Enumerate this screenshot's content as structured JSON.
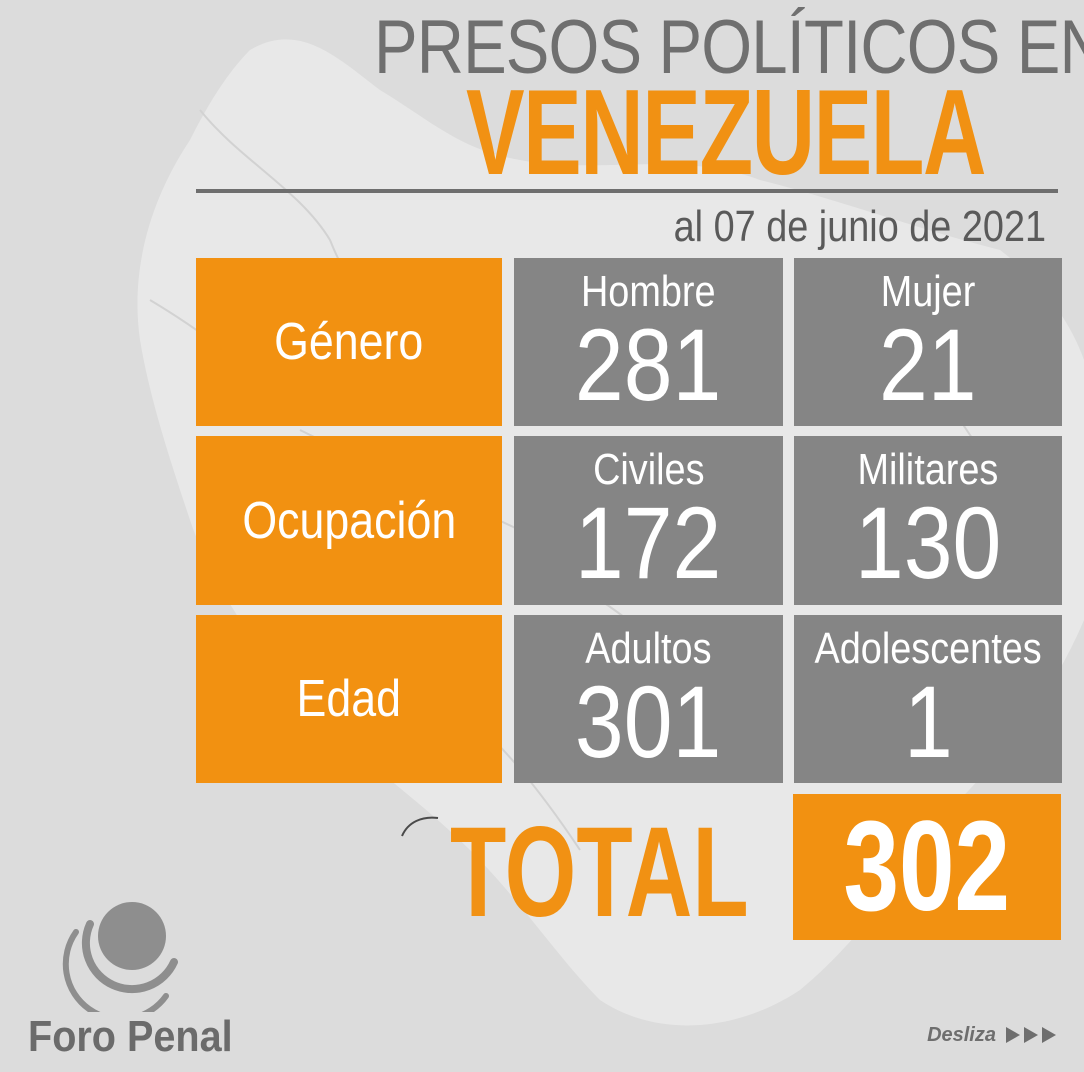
{
  "title": {
    "line1": "PRESOS POLÍTICOS EN",
    "line2": "VENEZUELA",
    "date": "al 07 de junio de 2021"
  },
  "rows": [
    {
      "category": "Género",
      "stats": [
        {
          "label": "Hombre",
          "value": "281"
        },
        {
          "label": "Mujer",
          "value": "21"
        }
      ]
    },
    {
      "category": "Ocupación",
      "stats": [
        {
          "label": "Civiles",
          "value": "172"
        },
        {
          "label": "Militares",
          "value": "130"
        }
      ]
    },
    {
      "category": "Edad",
      "stats": [
        {
          "label": "Adultos",
          "value": "301"
        },
        {
          "label": "Adolescentes",
          "value": "1"
        }
      ]
    }
  ],
  "total": {
    "label": "TOTAL",
    "value": "302"
  },
  "brand": {
    "name": "Foro Penal",
    "logo_icon": "foro-penal-logo"
  },
  "swipe": {
    "label": "Desliza",
    "icon": "triple-arrow-right-icon"
  },
  "colors": {
    "background": "#dcdcdc",
    "accent_orange": "#f29111",
    "stat_gray": "#858585",
    "title_gray": "#6f6f6f"
  }
}
